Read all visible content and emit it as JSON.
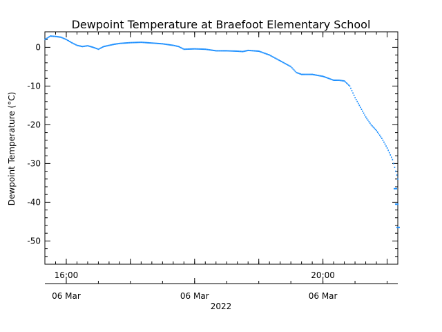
{
  "chart_data": {
    "type": "scatter",
    "title": "Dewpoint Temperature at Braefoot Elementary School",
    "ylabel": "Dewpoint Temperature (°C)",
    "xlabel": "",
    "ylim": [
      -56,
      4
    ],
    "xlim": [
      "2022-03-06 15:40",
      "2022-03-06 21:10"
    ],
    "yticks": [
      0,
      -10,
      -20,
      -30,
      -40,
      -50
    ],
    "grid": false,
    "legend": "none",
    "series_color": "#1e90ff",
    "x_tick_labels": [
      "16:00",
      "20:00"
    ],
    "x_tick_times": [
      "2022-03-06 16:00",
      "2022-03-06 20:00"
    ],
    "date_axis_ticks": [
      "2022-03-06 16:00",
      "2022-03-06 18:00",
      "2022-03-06 20:00"
    ],
    "date_axis_labels": [
      "06 Mar",
      "06 Mar",
      "06 Mar"
    ],
    "year_label": "2022",
    "points": [
      [
        "2022-03-06 15:40",
        2.0
      ],
      [
        "2022-03-06 15:45",
        2.9
      ],
      [
        "2022-03-06 15:50",
        2.8
      ],
      [
        "2022-03-06 15:55",
        2.6
      ],
      [
        "2022-03-06 16:00",
        2.0
      ],
      [
        "2022-03-06 16:05",
        1.2
      ],
      [
        "2022-03-06 16:10",
        0.5
      ],
      [
        "2022-03-06 16:15",
        0.2
      ],
      [
        "2022-03-06 16:20",
        0.4
      ],
      [
        "2022-03-06 16:25",
        0.0
      ],
      [
        "2022-03-06 16:30",
        -0.5
      ],
      [
        "2022-03-06 16:35",
        0.2
      ],
      [
        "2022-03-06 16:40",
        0.5
      ],
      [
        "2022-03-06 16:45",
        0.8
      ],
      [
        "2022-03-06 16:50",
        1.0
      ],
      [
        "2022-03-06 17:00",
        1.2
      ],
      [
        "2022-03-06 17:10",
        1.3
      ],
      [
        "2022-03-06 17:20",
        1.1
      ],
      [
        "2022-03-06 17:30",
        0.9
      ],
      [
        "2022-03-06 17:40",
        0.5
      ],
      [
        "2022-03-06 17:45",
        0.2
      ],
      [
        "2022-03-06 17:50",
        -0.5
      ],
      [
        "2022-03-06 18:00",
        -0.4
      ],
      [
        "2022-03-06 18:10",
        -0.5
      ],
      [
        "2022-03-06 18:20",
        -0.9
      ],
      [
        "2022-03-06 18:30",
        -0.9
      ],
      [
        "2022-03-06 18:40",
        -1.0
      ],
      [
        "2022-03-06 18:45",
        -1.1
      ],
      [
        "2022-03-06 18:50",
        -0.8
      ],
      [
        "2022-03-06 19:00",
        -1.0
      ],
      [
        "2022-03-06 19:10",
        -2.0
      ],
      [
        "2022-03-06 19:20",
        -3.5
      ],
      [
        "2022-03-06 19:30",
        -5.0
      ],
      [
        "2022-03-06 19:35",
        -6.5
      ],
      [
        "2022-03-06 19:40",
        -7.0
      ],
      [
        "2022-03-06 19:50",
        -7.0
      ],
      [
        "2022-03-06 20:00",
        -7.5
      ],
      [
        "2022-03-06 20:05",
        -8.0
      ],
      [
        "2022-03-06 20:10",
        -8.5
      ],
      [
        "2022-03-06 20:15",
        -8.5
      ],
      [
        "2022-03-06 20:20",
        -8.7
      ],
      [
        "2022-03-06 20:25",
        -10.0
      ],
      [
        "2022-03-06 20:30",
        -13.0
      ],
      [
        "2022-03-06 20:35",
        -15.5
      ],
      [
        "2022-03-06 20:40",
        -18.0
      ],
      [
        "2022-03-06 20:45",
        -20.0
      ],
      [
        "2022-03-06 20:50",
        -21.5
      ],
      [
        "2022-03-06 20:55",
        -23.5
      ],
      [
        "2022-03-06 21:00",
        -26.0
      ],
      [
        "2022-03-06 21:05",
        -29.0
      ],
      [
        "2022-03-06 21:10",
        -34.0
      ]
    ],
    "tail_points": [
      [
        "2022-03-06 21:10",
        -36.5
      ],
      [
        "2022-03-06 21:10",
        -40.5
      ],
      [
        "2022-03-06 21:10",
        -46.5
      ]
    ]
  }
}
